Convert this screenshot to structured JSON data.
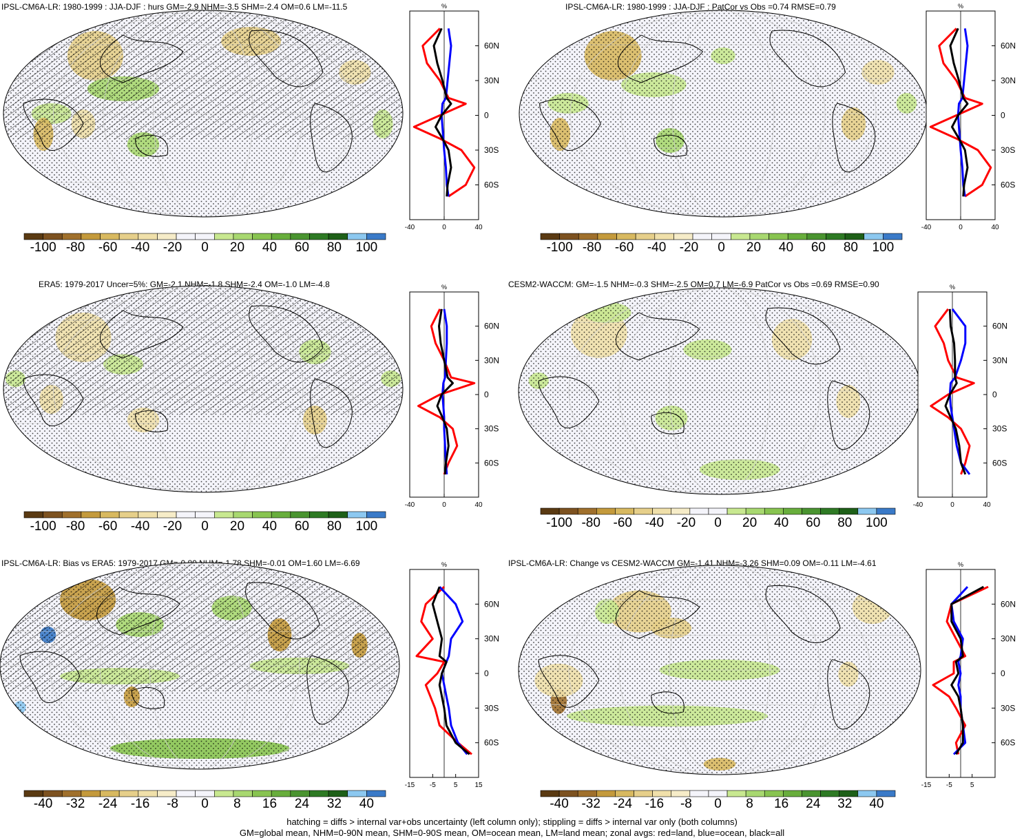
{
  "panels": [
    {
      "id": "p1",
      "title": "IPSL-CM6A-LR: 1980-1999 : JJA-DJF : hurs GM=-2.9 NHM=-3.5 SHM=-2.4 OM=0.6 LM=-11.5",
      "hatched": true,
      "colorbar": "pct",
      "profile": {
        "xticks": [
          "-40",
          "0",
          "40"
        ],
        "xrange": [
          -40,
          40
        ],
        "unit": "%",
        "yticks": [
          "60N",
          "30N",
          "0",
          "30S",
          "60S"
        ]
      }
    },
    {
      "id": "p2",
      "title": "IPSL-CM6A-LR: 1980-1999 : JJA-DJF : PatCor vs Obs =0.74 RMSE=0.79",
      "hatched": false,
      "colorbar": "pct",
      "profile": {
        "xticks": [
          "-40",
          "0",
          "40"
        ],
        "xrange": [
          -40,
          40
        ],
        "unit": "%",
        "yticks": [
          "60N",
          "30N",
          "0",
          "30S",
          "60S"
        ]
      }
    },
    {
      "id": "p3",
      "title": "ERA5: 1979-2017 Uncer=5%: GM=-2.1 NHM=-1.8 SHM=-2.4 OM=-1.0 LM=-4.8",
      "hatched": true,
      "colorbar": "pct",
      "profile": {
        "xticks": [
          "-40",
          "0",
          "40"
        ],
        "xrange": [
          -40,
          40
        ],
        "unit": "%",
        "yticks": [
          "60N",
          "30N",
          "0",
          "30S",
          "60S"
        ]
      }
    },
    {
      "id": "p4",
      "title": "CESM2-WACCM: GM=-1.5 NHM=-0.3 SHM=-2.5 OM=0.7 LM=-6.9 PatCor vs Obs =0.69 RMSE=0.90",
      "hatched": false,
      "colorbar": "pct",
      "profile": {
        "xticks": [
          "-40",
          "0",
          "40"
        ],
        "xrange": [
          -40,
          40
        ],
        "unit": "%",
        "yticks": [
          "60N",
          "30N",
          "0",
          "30S",
          "60S"
        ]
      }
    },
    {
      "id": "p5",
      "title": "IPSL-CM6A-LR: Bias vs ERA5: 1979-2017 GM=-0.80 NHM=-1.78 SHM=-0.01 OM=1.60 LM=-6.69",
      "hatched": true,
      "colorbar": "small",
      "profile": {
        "xticks": [
          "-15",
          "-5",
          "5",
          "15"
        ],
        "xrange": [
          -15,
          15
        ],
        "unit": "%",
        "yticks": [
          "60N",
          "30N",
          "0",
          "30S",
          "60S"
        ]
      }
    },
    {
      "id": "p6",
      "title": "IPSL-CM6A-LR: Change vs CESM2-WACCM GM=-1.41 NHM=-3.26 SHM=0.09 OM=-0.11 LM=-4.61",
      "hatched": false,
      "colorbar": "small",
      "profile": {
        "xticks": [
          "-15",
          "-5",
          "5"
        ],
        "xrange": [
          -15,
          15
        ],
        "unit": "%",
        "yticks": [
          "60N",
          "30N",
          "0",
          "30S",
          "60S"
        ]
      }
    }
  ],
  "colorbars": {
    "pct": {
      "labels": [
        "-100",
        "-80",
        "-60",
        "-40",
        "-20",
        "0",
        "20",
        "40",
        "60",
        "80",
        "100"
      ]
    },
    "small": {
      "labels": [
        "-40",
        "-32",
        "-24",
        "-16",
        "-8",
        "0",
        "8",
        "16",
        "24",
        "32",
        "40"
      ]
    }
  },
  "palette": [
    "#5a3a12",
    "#7d5220",
    "#a0702c",
    "#c49a3c",
    "#d8b960",
    "#e6cf8a",
    "#f0e0aa",
    "#f6ecc8",
    "#f4f4fa",
    "#f4f4fa",
    "#c8e890",
    "#a8d870",
    "#88c450",
    "#68ae3c",
    "#4a9430",
    "#2e7a24",
    "#1e6018",
    "#8cc8f0",
    "#3a7ac8"
  ],
  "series_colors": {
    "land": "#ff0000",
    "ocean": "#0000ff",
    "all": "#000000"
  },
  "footer": {
    "line1": "hatching = diffs > internal var+obs uncertainty (left column only); stippling = diffs > internal var only (both columns)",
    "line2": "GM=global mean, NHM=0-90N mean, SHM=0-90S mean, OM=ocean mean, LM=land mean; zonal avgs: red=land, blue=ocean, black=all"
  },
  "chart_data": [
    {
      "type": "heatmap",
      "title": "IPSL-CM6A-LR: 1980-1999 : JJA-DJF : hurs GM=-2.9 NHM=-3.5 SHM=-2.4 OM=0.6 LM=-11.5",
      "colorbar_range": [
        -100,
        100
      ],
      "zonal": {
        "lat": [
          75,
          60,
          45,
          30,
          15,
          10,
          0,
          -10,
          -20,
          -30,
          -45,
          -60,
          -70
        ],
        "land": [
          -5,
          -25,
          -20,
          -5,
          5,
          25,
          -5,
          -35,
          -5,
          20,
          35,
          25,
          5
        ],
        "ocean": [
          5,
          8,
          6,
          4,
          2,
          -2,
          -3,
          -2,
          -1,
          0,
          2,
          3,
          5
        ],
        "all": [
          -3,
          -12,
          -8,
          -2,
          3,
          8,
          -3,
          -10,
          -2,
          5,
          8,
          4,
          3
        ]
      }
    },
    {
      "type": "heatmap",
      "title": "IPSL-CM6A-LR: 1980-1999 : JJA-DJF : PatCor vs Obs =0.74 RMSE=0.79",
      "colorbar_range": [
        -100,
        100
      ],
      "zonal": {
        "lat": [
          75,
          60,
          45,
          30,
          15,
          10,
          0,
          -10,
          -20,
          -30,
          -45,
          -60,
          -70
        ],
        "land": [
          -5,
          -25,
          -20,
          -5,
          5,
          25,
          -5,
          -35,
          -5,
          20,
          35,
          25,
          5
        ],
        "ocean": [
          5,
          8,
          6,
          4,
          2,
          -2,
          -3,
          -2,
          -1,
          0,
          2,
          3,
          5
        ],
        "all": [
          -3,
          -12,
          -8,
          -2,
          3,
          8,
          -3,
          -10,
          -2,
          5,
          8,
          4,
          3
        ]
      }
    },
    {
      "type": "heatmap",
      "title": "ERA5: 1979-2017 Uncer=5%: GM=-2.1 NHM=-1.8 SHM=-2.4 OM=-1.0 LM=-4.8",
      "colorbar_range": [
        -100,
        100
      ],
      "zonal": {
        "lat": [
          75,
          60,
          45,
          30,
          15,
          10,
          0,
          -10,
          -20,
          -30,
          -45,
          -60,
          -70
        ],
        "land": [
          -5,
          -15,
          -10,
          0,
          8,
          35,
          -5,
          -30,
          -5,
          10,
          15,
          5,
          0
        ],
        "ocean": [
          0,
          3,
          3,
          2,
          1,
          -1,
          -2,
          -1,
          0,
          0,
          1,
          2,
          3
        ],
        "all": [
          -3,
          -6,
          -4,
          0,
          4,
          10,
          -3,
          -8,
          -2,
          3,
          5,
          2,
          1
        ]
      }
    },
    {
      "type": "heatmap",
      "title": "CESM2-WACCM: GM=-1.5 NHM=-0.3 SHM=-2.5 OM=0.7 LM=-6.9 PatCor vs Obs =0.69 RMSE=0.90",
      "colorbar_range": [
        -100,
        100
      ],
      "zonal": {
        "lat": [
          75,
          60,
          45,
          30,
          15,
          10,
          0,
          -10,
          -20,
          -30,
          -45,
          -60,
          -70
        ],
        "land": [
          -5,
          -20,
          -10,
          -5,
          5,
          25,
          -5,
          -25,
          -5,
          10,
          20,
          15,
          10
        ],
        "ocean": [
          0,
          15,
          15,
          10,
          3,
          -2,
          -3,
          -2,
          0,
          2,
          5,
          10,
          20
        ],
        "all": [
          -3,
          -2,
          2,
          3,
          3,
          5,
          -3,
          -8,
          -2,
          4,
          8,
          10,
          15
        ]
      }
    },
    {
      "type": "heatmap",
      "title": "IPSL-CM6A-LR: Bias vs ERA5: 1979-2017 GM=-0.80 NHM=-1.78 SHM=-0.01 OM=1.60 LM=-6.69",
      "colorbar_range": [
        -40,
        40
      ],
      "zonal": {
        "lat": [
          75,
          60,
          45,
          30,
          15,
          10,
          0,
          -10,
          -20,
          -30,
          -45,
          -60,
          -70
        ],
        "land": [
          0,
          -8,
          -10,
          -5,
          -12,
          0,
          -3,
          -8,
          -6,
          -4,
          -2,
          6,
          12
        ],
        "ocean": [
          -2,
          5,
          8,
          3,
          2,
          1,
          -1,
          0,
          1,
          2,
          3,
          6,
          10
        ],
        "all": [
          -2,
          -5,
          -3,
          -1,
          -2,
          1,
          -1,
          -2,
          -1,
          0,
          1,
          5,
          11
        ]
      }
    },
    {
      "type": "heatmap",
      "title": "IPSL-CM6A-LR: Change vs CESM2-WACCM GM=-1.41 NHM=-3.26 SHM=0.09 OM=-0.11 LM=-4.61",
      "colorbar_range": [
        -40,
        40
      ],
      "zonal": {
        "lat": [
          75,
          60,
          45,
          30,
          15,
          10,
          0,
          -10,
          -20,
          -30,
          -45,
          -60,
          -70
        ],
        "land": [
          12,
          -4,
          -6,
          -2,
          2,
          -3,
          -3,
          -12,
          -5,
          -2,
          2,
          -2,
          -1
        ],
        "ocean": [
          3,
          -4,
          -3,
          1,
          0,
          -1,
          0,
          -1,
          0,
          0,
          1,
          2,
          -3
        ],
        "all": [
          10,
          -4,
          -4,
          0,
          1,
          -2,
          -1,
          -4,
          -1,
          0,
          1,
          1,
          -2
        ]
      }
    }
  ]
}
